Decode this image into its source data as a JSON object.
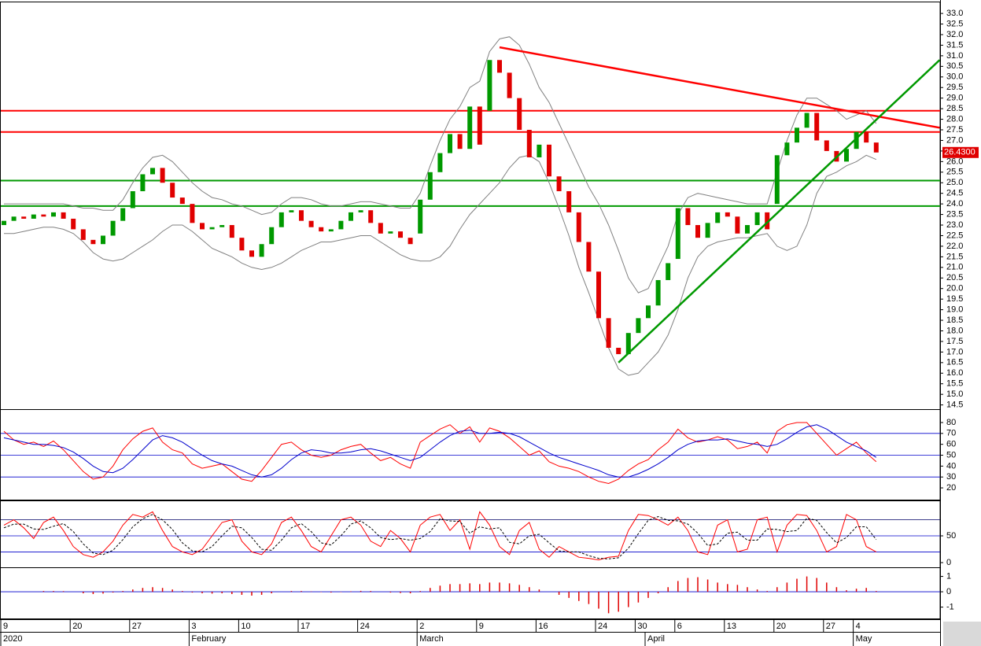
{
  "chart_data": [
    {
      "type": "candlestick",
      "categories": [
        "9",
        null,
        null,
        null,
        null,
        null,
        null,
        "20",
        null,
        null,
        null,
        null,
        null,
        "27",
        null,
        null,
        null,
        null,
        null,
        "3",
        null,
        null,
        null,
        null,
        "10",
        null,
        null,
        null,
        null,
        null,
        "17",
        null,
        null,
        null,
        null,
        null,
        "24",
        null,
        null,
        null,
        null,
        null,
        "2",
        null,
        null,
        null,
        null,
        null,
        "9",
        null,
        null,
        null,
        null,
        null,
        "16",
        null,
        null,
        null,
        null,
        null,
        "24",
        null,
        null,
        null,
        "30",
        null,
        null,
        null,
        "6",
        null,
        null,
        null,
        null,
        "13",
        null,
        null,
        null,
        null,
        "20",
        null,
        null,
        null,
        null,
        "27",
        null,
        null,
        "4",
        null,
        null
      ],
      "months": [
        "2020",
        null,
        null,
        null,
        null,
        null,
        null,
        null,
        null,
        null,
        null,
        null,
        null,
        null,
        null,
        null,
        null,
        null,
        null,
        "February",
        null,
        null,
        null,
        null,
        null,
        null,
        null,
        null,
        null,
        null,
        null,
        null,
        null,
        null,
        null,
        null,
        null,
        null,
        null,
        null,
        null,
        null,
        "March",
        null,
        null,
        null,
        null,
        null,
        null,
        null,
        null,
        null,
        null,
        null,
        null,
        null,
        null,
        null,
        null,
        null,
        null,
        null,
        null,
        null,
        null,
        "April",
        null,
        null,
        null,
        null,
        null,
        null,
        null,
        null,
        null,
        null,
        null,
        null,
        null,
        null,
        null,
        null,
        null,
        null,
        null,
        null,
        "May",
        null,
        null
      ],
      "open": [
        23.0,
        23.2,
        23.4,
        23.3,
        23.5,
        23.4,
        23.6,
        23.3,
        22.8,
        22.3,
        22.1,
        22.5,
        23.2,
        23.8,
        24.6,
        25.4,
        25.7,
        25.0,
        24.3,
        24.0,
        23.1,
        22.8,
        22.9,
        23.0,
        22.4,
        21.8,
        21.5,
        22.1,
        22.9,
        23.6,
        23.7,
        23.2,
        22.9,
        22.7,
        22.8,
        23.2,
        23.6,
        23.7,
        23.1,
        22.6,
        22.7,
        22.4,
        22.6,
        24.2,
        25.5,
        26.4,
        27.3,
        26.6,
        28.6,
        28.4,
        30.8,
        30.2,
        29.0,
        27.5,
        26.2,
        26.8,
        25.3,
        24.6,
        23.6,
        22.2,
        20.8,
        18.6,
        17.2,
        16.9,
        17.9,
        18.6,
        19.2,
        20.4,
        21.4,
        23.8,
        23.0,
        22.4,
        23.1,
        23.6,
        23.4,
        22.6,
        23.0,
        23.6,
        24.0,
        26.3,
        26.9,
        27.6,
        28.3,
        27.0,
        26.5,
        26.0,
        26.6,
        27.4,
        26.9
      ],
      "close": [
        23.2,
        23.4,
        23.3,
        23.5,
        23.4,
        23.6,
        23.3,
        22.8,
        22.3,
        22.1,
        22.5,
        23.2,
        23.8,
        24.6,
        25.4,
        25.7,
        25.0,
        24.3,
        24.0,
        23.1,
        22.8,
        22.9,
        23.0,
        22.4,
        21.8,
        21.5,
        22.1,
        22.9,
        23.6,
        23.7,
        23.2,
        22.9,
        22.7,
        22.8,
        23.2,
        23.6,
        23.7,
        23.1,
        22.6,
        22.7,
        22.4,
        22.1,
        24.2,
        25.5,
        26.4,
        27.3,
        26.6,
        28.6,
        26.8,
        30.8,
        30.2,
        29.0,
        27.5,
        26.2,
        26.8,
        25.3,
        24.6,
        23.6,
        22.2,
        20.8,
        18.6,
        17.2,
        16.9,
        17.9,
        18.6,
        19.2,
        20.4,
        21.2,
        23.8,
        23.0,
        22.4,
        23.1,
        23.6,
        23.4,
        22.6,
        23.0,
        23.6,
        22.8,
        26.3,
        26.9,
        27.6,
        28.3,
        27.0,
        26.5,
        26.0,
        26.6,
        27.4,
        26.9,
        26.43
      ],
      "bollinger_upper": [
        24.0,
        24.0,
        24.0,
        24.0,
        24.0,
        24.0,
        24.0,
        23.9,
        23.8,
        23.8,
        23.7,
        23.7,
        24.2,
        25.0,
        25.7,
        26.2,
        26.3,
        26.0,
        25.5,
        25.0,
        24.6,
        24.3,
        24.2,
        24.0,
        23.9,
        23.7,
        23.5,
        23.6,
        24.0,
        24.3,
        24.3,
        24.2,
        24.0,
        23.9,
        23.9,
        24.0,
        24.1,
        24.1,
        24.0,
        23.9,
        23.8,
        23.8,
        24.5,
        25.8,
        27.0,
        28.0,
        28.6,
        29.5,
        29.8,
        31.2,
        31.8,
        31.9,
        31.5,
        30.6,
        29.5,
        28.8,
        27.8,
        26.8,
        25.8,
        24.8,
        24.0,
        23.0,
        21.8,
        20.5,
        19.8,
        20.0,
        21.0,
        22.0,
        23.5,
        24.3,
        24.5,
        24.4,
        24.3,
        24.2,
        24.1,
        24.0,
        24.0,
        24.0,
        25.5,
        27.0,
        28.2,
        29.0,
        29.0,
        28.7,
        28.4,
        28.0,
        28.2,
        28.4,
        27.8
      ],
      "bollinger_lower": [
        22.6,
        22.6,
        22.7,
        22.8,
        22.9,
        22.9,
        22.8,
        22.6,
        22.2,
        21.7,
        21.4,
        21.3,
        21.4,
        21.7,
        22.0,
        22.3,
        22.7,
        23.0,
        23.0,
        22.7,
        22.3,
        21.9,
        21.7,
        21.5,
        21.2,
        21.0,
        20.9,
        21.0,
        21.2,
        21.5,
        21.8,
        22.0,
        22.2,
        22.2,
        22.3,
        22.4,
        22.5,
        22.5,
        22.2,
        21.9,
        21.6,
        21.4,
        21.3,
        21.3,
        21.5,
        22.0,
        22.8,
        23.5,
        24.0,
        24.5,
        25.0,
        25.7,
        26.2,
        26.3,
        26.0,
        25.0,
        23.8,
        22.5,
        21.0,
        19.8,
        18.5,
        17.2,
        16.2,
        15.9,
        16.0,
        16.5,
        17.0,
        17.8,
        19.0,
        20.5,
        21.5,
        22.0,
        22.2,
        22.3,
        22.4,
        22.4,
        22.5,
        22.6,
        22.0,
        21.8,
        22.0,
        23.0,
        24.5,
        25.3,
        25.5,
        25.8,
        26.0,
        26.3,
        26.1
      ],
      "up_color": "#009900",
      "down_color": "#e00000",
      "band_color": "#808080",
      "hlines": [
        {
          "value": 28.4,
          "color": "#ff0000"
        },
        {
          "value": 27.4,
          "color": "#ff0000"
        },
        {
          "value": 25.1,
          "color": "#009900"
        },
        {
          "value": 23.9,
          "color": "#009900"
        }
      ],
      "trendlines": [
        {
          "color": "#ff0000",
          "x": [
            50,
            94.4
          ],
          "y": [
            31.4,
            27.6
          ]
        },
        {
          "color": "#009900",
          "x": [
            62,
            94.4
          ],
          "y": [
            16.5,
            30.8
          ]
        }
      ],
      "last_value_label": "26.4300",
      "ylim": [
        14.3,
        33.45
      ],
      "yticks": [
        14.5,
        {
          "value": 15,
          "label": "15.0"
        },
        15.5,
        {
          "value": 16,
          "label": "16.0"
        },
        16.5,
        {
          "value": 17,
          "label": "17.0"
        },
        17.5,
        {
          "value": 18,
          "label": "18.0"
        },
        18.5,
        {
          "value": 19,
          "label": "19.0"
        },
        19.5,
        {
          "value": 20,
          "label": "20.0"
        },
        20.5,
        {
          "value": 21,
          "label": "21.0"
        },
        21.5,
        {
          "value": 22,
          "label": "22.0"
        },
        22.5,
        {
          "value": 23,
          "label": "23.0"
        },
        23.5,
        {
          "value": 24,
          "label": "24.0"
        },
        24.5,
        {
          "value": 25,
          "label": "25.0"
        },
        25.5,
        {
          "value": 26,
          "label": "26.0"
        },
        26.5,
        {
          "value": 27,
          "label": "27.0"
        },
        27.5,
        {
          "value": 28,
          "label": "28.0"
        },
        28.5,
        {
          "value": 29,
          "label": "29.0"
        },
        29.5,
        {
          "value": 30,
          "label": "30.0"
        },
        30.5,
        {
          "value": 31,
          "label": "31.0"
        },
        31.5,
        {
          "value": 32,
          "label": "32.0"
        },
        32.5,
        {
          "value": 33,
          "label": "33.0"
        }
      ]
    },
    {
      "type": "line",
      "series": [
        {
          "color": "#ff0000",
          "values": [
            72,
            64,
            60,
            62,
            58,
            63,
            55,
            45,
            35,
            28,
            30,
            40,
            55,
            65,
            72,
            75,
            62,
            55,
            52,
            42,
            38,
            40,
            42,
            35,
            28,
            26,
            36,
            48,
            60,
            62,
            55,
            50,
            48,
            50,
            55,
            58,
            60,
            52,
            45,
            48,
            42,
            38,
            62,
            68,
            74,
            78,
            70,
            76,
            62,
            75,
            72,
            66,
            58,
            50,
            54,
            44,
            40,
            38,
            35,
            30,
            26,
            24,
            28,
            36,
            42,
            46,
            55,
            62,
            74,
            66,
            62,
            64,
            67,
            64,
            56,
            58,
            62,
            52,
            72,
            78,
            80,
            80,
            70,
            60,
            50,
            56,
            62,
            52,
            44
          ]
        },
        {
          "color": "#0000cc",
          "values": [
            66,
            64,
            62,
            60,
            60,
            59,
            57,
            53,
            47,
            40,
            35,
            34,
            38,
            46,
            55,
            64,
            68,
            66,
            62,
            56,
            50,
            45,
            42,
            40,
            36,
            32,
            30,
            32,
            38,
            46,
            52,
            55,
            54,
            52,
            52,
            53,
            55,
            56,
            54,
            51,
            48,
            45,
            48,
            55,
            62,
            68,
            72,
            73,
            70,
            70,
            71,
            70,
            67,
            62,
            57,
            52,
            48,
            45,
            42,
            39,
            36,
            32,
            30,
            30,
            33,
            37,
            42,
            48,
            55,
            60,
            63,
            64,
            64,
            65,
            63,
            61,
            60,
            58,
            60,
            65,
            71,
            76,
            78,
            74,
            68,
            62,
            58,
            54,
            48
          ]
        }
      ],
      "hlines": [
        {
          "value": 70,
          "color": "#0000cc"
        },
        {
          "value": 50,
          "color": "#0000cc"
        },
        {
          "value": 30,
          "color": "#0000cc"
        }
      ],
      "ylim": [
        9.2,
        90.1
      ],
      "yticks": [
        20,
        30,
        40,
        50,
        60,
        70,
        80
      ]
    },
    {
      "type": "line",
      "series": [
        {
          "color": "#ff0000",
          "values": [
            70,
            80,
            65,
            45,
            75,
            85,
            60,
            30,
            15,
            10,
            20,
            40,
            70,
            90,
            85,
            95,
            60,
            30,
            20,
            15,
            25,
            50,
            75,
            80,
            40,
            20,
            15,
            35,
            75,
            85,
            60,
            30,
            20,
            50,
            80,
            85,
            70,
            40,
            30,
            60,
            45,
            20,
            70,
            85,
            90,
            60,
            80,
            25,
            95,
            70,
            30,
            15,
            60,
            75,
            25,
            10,
            30,
            20,
            10,
            8,
            5,
            10,
            12,
            60,
            90,
            88,
            80,
            70,
            85,
            60,
            20,
            15,
            70,
            80,
            20,
            25,
            80,
            85,
            20,
            70,
            90,
            88,
            60,
            20,
            30,
            90,
            80,
            30,
            20
          ]
        },
        {
          "color": "#000000",
          "dashed": true,
          "values": [
            65,
            72,
            72,
            63,
            62,
            68,
            73,
            58,
            35,
            18,
            15,
            23,
            43,
            67,
            82,
            90,
            80,
            62,
            37,
            22,
            20,
            30,
            50,
            68,
            65,
            47,
            25,
            23,
            42,
            65,
            73,
            58,
            37,
            33,
            50,
            72,
            78,
            65,
            47,
            43,
            45,
            42,
            45,
            58,
            82,
            78,
            77,
            55,
            67,
            63,
            65,
            38,
            35,
            50,
            53,
            37,
            22,
            20,
            20,
            13,
            8,
            7,
            9,
            27,
            54,
            79,
            86,
            79,
            78,
            72,
            55,
            32,
            35,
            55,
            57,
            42,
            42,
            63,
            62,
            58,
            60,
            83,
            79,
            56,
            37,
            47,
            67,
            67,
            43
          ]
        }
      ],
      "hlines": [
        {
          "value": 80,
          "color": "#000066"
        },
        {
          "value": 50,
          "color": "#0000cc"
        },
        {
          "value": 20,
          "color": "#0000cc"
        }
      ],
      "ylim": [
        -8.8,
        111.8
      ],
      "yticks": [
        0,
        50
      ]
    },
    {
      "type": "bar",
      "values": [
        0,
        0,
        0,
        0,
        0.05,
        0.05,
        0.04,
        0.0,
        -0.1,
        -0.15,
        -0.12,
        -0.05,
        0.05,
        0.15,
        0.25,
        0.3,
        0.25,
        0.15,
        0.05,
        -0.05,
        -0.1,
        -0.12,
        -0.1,
        -0.15,
        -0.2,
        -0.25,
        -0.2,
        -0.1,
        0.0,
        0.05,
        0.05,
        0.02,
        -0.02,
        -0.05,
        -0.02,
        0.03,
        0.06,
        0.05,
        0.0,
        -0.05,
        -0.08,
        -0.1,
        0.05,
        0.25,
        0.4,
        0.5,
        0.5,
        0.55,
        0.5,
        0.6,
        0.6,
        0.55,
        0.45,
        0.3,
        0.15,
        0.0,
        -0.2,
        -0.4,
        -0.6,
        -0.8,
        -1.1,
        -1.4,
        -1.3,
        -1.0,
        -0.7,
        -0.4,
        -0.1,
        0.3,
        0.7,
        0.9,
        0.95,
        0.8,
        0.6,
        0.5,
        0.45,
        0.3,
        0.15,
        0.05,
        0.3,
        0.6,
        0.85,
        1.0,
        0.9,
        0.6,
        0.3,
        0.1,
        0.2,
        0.25,
        0.05
      ],
      "color": "#e00000",
      "hlines": [
        {
          "value": 0,
          "color": "#0000cc"
        }
      ],
      "ylim": [
        -1.74,
        1.44
      ],
      "yticks": [
        -1,
        0,
        1
      ]
    }
  ]
}
